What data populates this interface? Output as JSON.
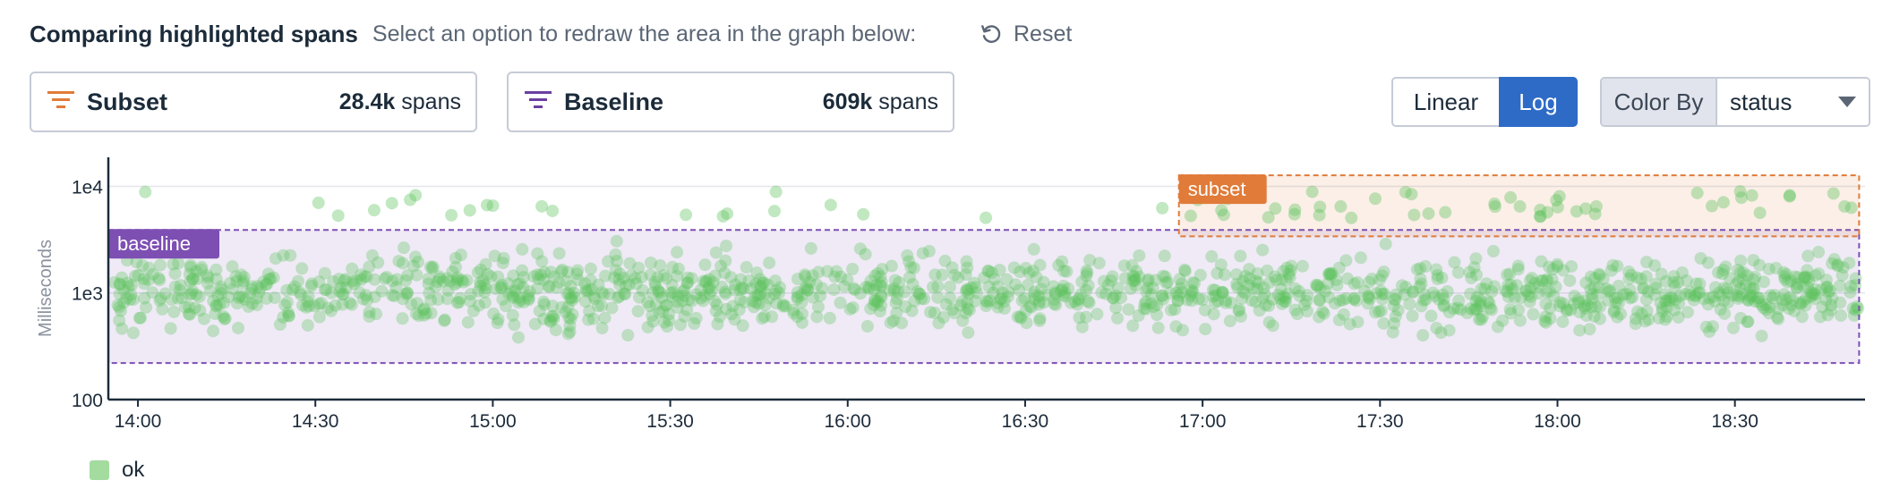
{
  "header": {
    "title": "Comparing highlighted spans",
    "hint": "Select an option to redraw the area in the graph below:",
    "reset_label": "Reset"
  },
  "selectors": {
    "subset": {
      "label": "Subset",
      "count": "28.4k",
      "unit": "spans",
      "color": "#e07b39"
    },
    "baseline": {
      "label": "Baseline",
      "count": "609k",
      "unit": "spans",
      "color": "#6a3fa0"
    }
  },
  "scale_toggle": {
    "linear_label": "Linear",
    "log_label": "Log",
    "selected": "Log"
  },
  "color_by": {
    "label": "Color By",
    "value": "status"
  },
  "chart_data": {
    "type": "scatter",
    "ylabel": "Milliseconds",
    "yscale": "log",
    "ylim": [
      100,
      18000
    ],
    "y_ticks": [
      "100",
      "1e3",
      "1e4"
    ],
    "y_tick_values": [
      100,
      1000,
      10000
    ],
    "x_ticks": [
      "14:00",
      "14:30",
      "15:00",
      "15:30",
      "16:00",
      "16:30",
      "17:00",
      "17:30",
      "18:00",
      "18:30"
    ],
    "x_tick_values": [
      "14:00",
      "14:30",
      "15:00",
      "15:30",
      "16:00",
      "16:30",
      "17:00",
      "17:30",
      "18:00",
      "18:30"
    ],
    "xlim": [
      "13:55",
      "18:52"
    ],
    "series": [
      {
        "name": "ok",
        "color": "#5cc35c",
        "point_count_approx": 1400,
        "cluster_y_range": [
          300,
          3500
        ],
        "high_outliers_y_range": [
          5000,
          9000
        ]
      }
    ],
    "regions": [
      {
        "label": "baseline",
        "color": "#7d4fb3",
        "x_range": [
          "13:55",
          "18:51"
        ],
        "y_range": [
          220,
          3900
        ]
      },
      {
        "label": "subset",
        "color": "#e07b39",
        "x_range": [
          "16:56",
          "18:51"
        ],
        "y_range": [
          3400,
          12700
        ]
      }
    ],
    "legend": {
      "placement": "bottom-left",
      "entries": [
        "ok"
      ]
    }
  }
}
